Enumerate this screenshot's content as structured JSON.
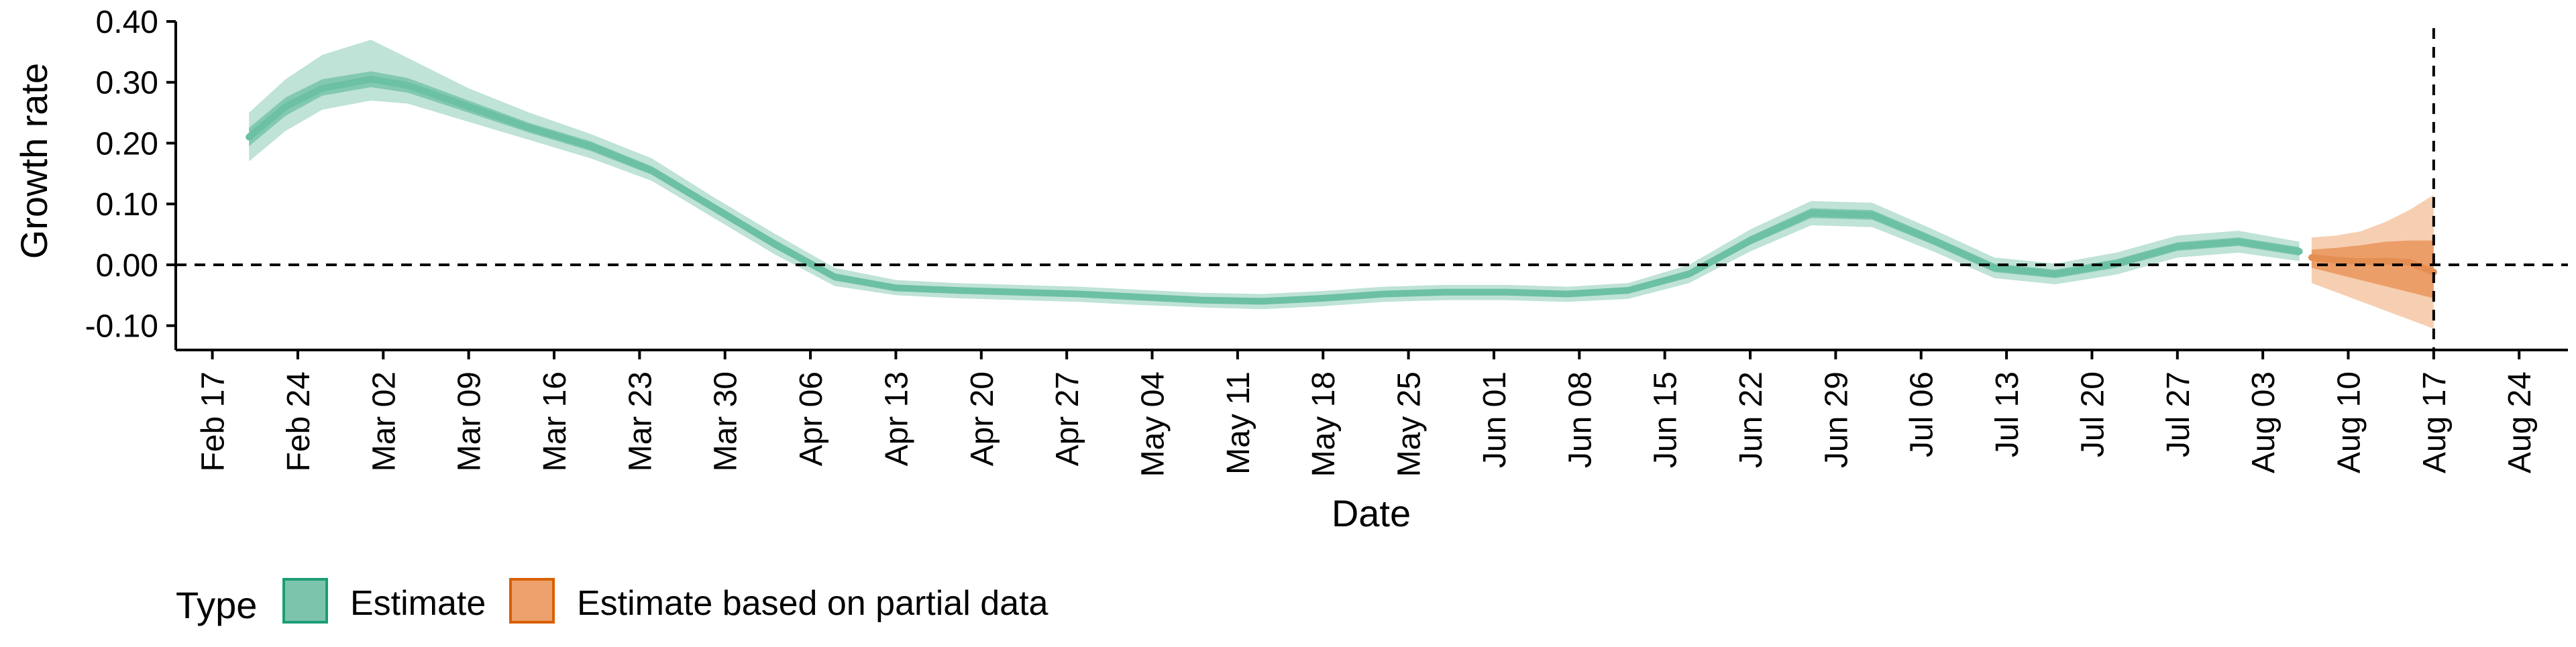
{
  "chart_data": {
    "type": "area",
    "title": "",
    "xlabel": "Date",
    "ylabel": "Growth rate",
    "x_axis_type": "date",
    "xlim": [
      "2020-02-14",
      "2020-08-28"
    ],
    "ylim": [
      -0.14,
      0.4
    ],
    "x_ticks": [
      "2020-02-17",
      "2020-02-24",
      "2020-03-02",
      "2020-03-09",
      "2020-03-16",
      "2020-03-23",
      "2020-03-30",
      "2020-04-06",
      "2020-04-13",
      "2020-04-20",
      "2020-04-27",
      "2020-05-04",
      "2020-05-11",
      "2020-05-18",
      "2020-05-25",
      "2020-06-01",
      "2020-06-08",
      "2020-06-15",
      "2020-06-22",
      "2020-06-29",
      "2020-07-06",
      "2020-07-13",
      "2020-07-20",
      "2020-07-27",
      "2020-08-03",
      "2020-08-10",
      "2020-08-17",
      "2020-08-24"
    ],
    "x_tick_labels": [
      "Feb 17",
      "Feb 24",
      "Mar 02",
      "Mar 09",
      "Mar 16",
      "Mar 23",
      "Mar 30",
      "Apr 06",
      "Apr 13",
      "Apr 20",
      "Apr 27",
      "May 04",
      "May 11",
      "May 18",
      "May 25",
      "Jun 01",
      "Jun 08",
      "Jun 15",
      "Jun 22",
      "Jun 29",
      "Jul 06",
      "Jul 13",
      "Jul 20",
      "Jul 27",
      "Aug 03",
      "Aug 10",
      "Aug 17",
      "Aug 24"
    ],
    "y_ticks": [
      -0.1,
      0.0,
      0.1,
      0.2,
      0.3,
      0.4
    ],
    "y_tick_labels": [
      "-0.10",
      "0.00",
      "0.10",
      "0.20",
      "0.30",
      "0.40"
    ],
    "grid": false,
    "legend_position": "bottom-left",
    "reference_lines": [
      {
        "axis": "y",
        "value": 0.0,
        "style": "dashed"
      },
      {
        "axis": "x",
        "value": "2020-08-17",
        "style": "dashed"
      }
    ],
    "series": [
      {
        "name": "Estimate",
        "color": "#1b9e77",
        "x": [
          "2020-02-20",
          "2020-02-23",
          "2020-02-26",
          "2020-03-01",
          "2020-03-04",
          "2020-03-09",
          "2020-03-14",
          "2020-03-19",
          "2020-03-24",
          "2020-03-29",
          "2020-04-03",
          "2020-04-08",
          "2020-04-13",
          "2020-04-18",
          "2020-04-23",
          "2020-04-28",
          "2020-05-03",
          "2020-05-08",
          "2020-05-13",
          "2020-05-18",
          "2020-05-23",
          "2020-05-28",
          "2020-06-02",
          "2020-06-07",
          "2020-06-12",
          "2020-06-17",
          "2020-06-22",
          "2020-06-27",
          "2020-07-02",
          "2020-07-07",
          "2020-07-12",
          "2020-07-17",
          "2020-07-22",
          "2020-07-27",
          "2020-08-01",
          "2020-08-06"
        ],
        "y": [
          0.21,
          0.26,
          0.29,
          0.305,
          0.295,
          0.26,
          0.225,
          0.195,
          0.155,
          0.095,
          0.035,
          -0.02,
          -0.038,
          -0.042,
          -0.045,
          -0.048,
          -0.053,
          -0.058,
          -0.06,
          -0.055,
          -0.048,
          -0.045,
          -0.045,
          -0.048,
          -0.042,
          -0.015,
          0.04,
          0.085,
          0.082,
          0.04,
          -0.005,
          -0.015,
          0.002,
          0.03,
          0.038,
          0.022
        ],
        "ci90_lower": [
          0.17,
          0.22,
          0.255,
          0.27,
          0.265,
          0.235,
          0.205,
          0.175,
          0.138,
          0.078,
          0.018,
          -0.035,
          -0.05,
          -0.055,
          -0.058,
          -0.061,
          -0.066,
          -0.07,
          -0.073,
          -0.068,
          -0.061,
          -0.058,
          -0.058,
          -0.061,
          -0.056,
          -0.03,
          0.022,
          0.065,
          0.062,
          0.022,
          -0.022,
          -0.032,
          -0.016,
          0.012,
          0.02,
          0.006
        ],
        "ci90_upper": [
          0.25,
          0.305,
          0.345,
          0.37,
          0.34,
          0.29,
          0.25,
          0.215,
          0.175,
          0.112,
          0.052,
          -0.005,
          -0.025,
          -0.03,
          -0.033,
          -0.036,
          -0.041,
          -0.046,
          -0.048,
          -0.043,
          -0.036,
          -0.033,
          -0.033,
          -0.036,
          -0.03,
          0,
          0.058,
          0.105,
          0.102,
          0.058,
          0.012,
          0.002,
          0.02,
          0.048,
          0.056,
          0.038
        ],
        "ci50_lower": [
          0.195,
          0.245,
          0.278,
          0.292,
          0.283,
          0.25,
          0.217,
          0.187,
          0.148,
          0.088,
          0.028,
          -0.026,
          -0.043,
          -0.047,
          -0.05,
          -0.053,
          -0.058,
          -0.063,
          -0.065,
          -0.06,
          -0.053,
          -0.05,
          -0.05,
          -0.053,
          -0.047,
          -0.021,
          0.033,
          0.077,
          0.074,
          0.033,
          -0.012,
          -0.022,
          -0.005,
          0.023,
          0.031,
          0.015
        ],
        "ci50_upper": [
          0.225,
          0.275,
          0.305,
          0.318,
          0.307,
          0.27,
          0.233,
          0.203,
          0.162,
          0.102,
          0.042,
          -0.014,
          -0.033,
          -0.037,
          -0.04,
          -0.043,
          -0.048,
          -0.053,
          -0.055,
          -0.05,
          -0.043,
          -0.04,
          -0.04,
          -0.043,
          -0.037,
          -0.009,
          0.047,
          0.093,
          0.09,
          0.047,
          0.002,
          -0.008,
          0.009,
          0.037,
          0.045,
          0.029
        ]
      },
      {
        "name": "Estimate based on partial data",
        "color": "#d95f02",
        "x": [
          "2020-08-07",
          "2020-08-09",
          "2020-08-11",
          "2020-08-13",
          "2020-08-15",
          "2020-08-17"
        ],
        "y": [
          0.012,
          0.008,
          0.005,
          0.006,
          0.004,
          -0.012
        ],
        "ci90_lower": [
          -0.03,
          -0.045,
          -0.06,
          -0.075,
          -0.09,
          -0.105
        ],
        "ci90_upper": [
          0.045,
          0.048,
          0.055,
          0.07,
          0.09,
          0.115
        ],
        "ci50_lower": [
          -0.005,
          -0.015,
          -0.025,
          -0.035,
          -0.045,
          -0.055
        ],
        "ci50_upper": [
          0.025,
          0.028,
          0.032,
          0.038,
          0.04,
          0.04
        ]
      }
    ],
    "legend": {
      "title": "Type",
      "items": [
        "Estimate",
        "Estimate based on partial data"
      ]
    }
  }
}
